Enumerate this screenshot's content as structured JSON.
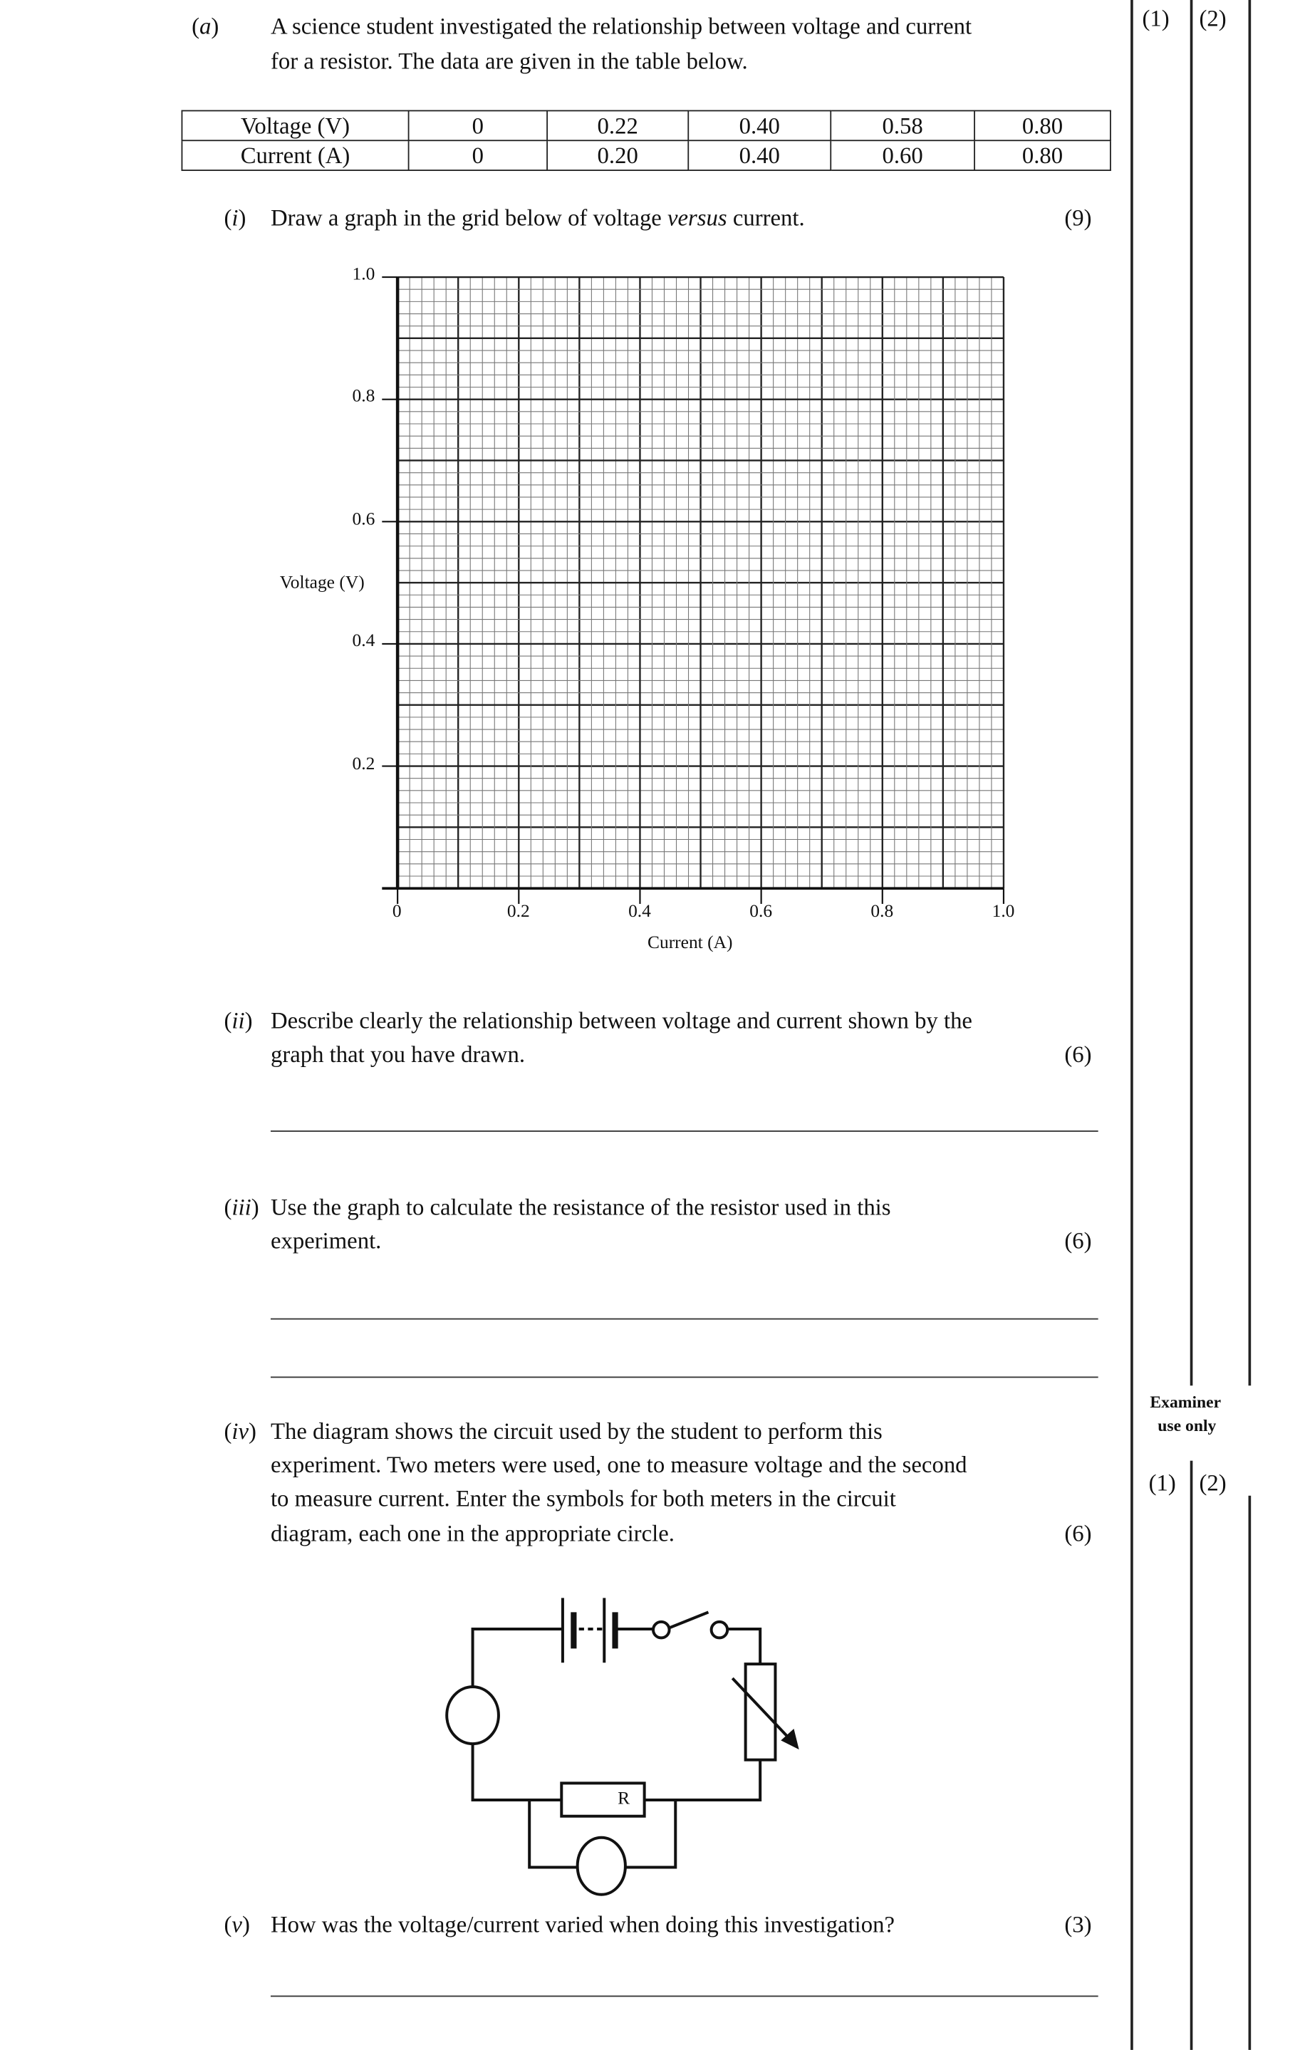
{
  "margin": {
    "top_marks": [
      "(1)",
      "(2)"
    ],
    "examiner_label": [
      "Examiner",
      "use only"
    ],
    "bottom_marks": [
      "(1)",
      "(2)"
    ]
  },
  "part_a": {
    "label": "a",
    "text": [
      "A science student investigated the relationship between voltage and current",
      "for a resistor. The data are given in the table below."
    ]
  },
  "table": {
    "rows": [
      {
        "header": "Voltage (V)",
        "values": [
          "0",
          "0.22",
          "0.40",
          "0.58",
          "0.80"
        ]
      },
      {
        "header": "Current (A)",
        "values": [
          "0",
          "0.20",
          "0.40",
          "0.60",
          "0.80"
        ]
      }
    ]
  },
  "q_i": {
    "num": "i",
    "pre": "Draw a graph in the grid below of voltage ",
    "em": "versus",
    "post": " current.",
    "marks": "(9)"
  },
  "chart_data": {
    "type": "scatter",
    "title": "",
    "xlabel": "Current (A)",
    "ylabel": "Voltage (V)",
    "xlim": [
      0,
      1.0
    ],
    "ylim": [
      0,
      1.0
    ],
    "x_ticks": [
      "0",
      "0.2",
      "0.4",
      "0.6",
      "0.8",
      "1.0"
    ],
    "y_ticks": [
      "0.2",
      "0.4",
      "0.6",
      "0.8",
      "1.0"
    ],
    "grid": true,
    "grid_major": 0.1,
    "grid_minor": 0.02,
    "points": []
  },
  "q_ii": {
    "num": "ii",
    "text": [
      "Describe clearly the relationship between voltage and current shown by the",
      "graph that you have drawn."
    ],
    "marks": "(6)"
  },
  "q_iii": {
    "num": "iii",
    "text": [
      "Use the graph to calculate the resistance of the resistor used in this",
      "experiment."
    ],
    "marks": "(6)"
  },
  "q_iv": {
    "num": "iv",
    "text": [
      "The diagram shows the circuit used by the student to perform this",
      "experiment. Two meters were used, one to measure voltage and the second",
      "to measure current. Enter the symbols for both meters in the circuit",
      "diagram, each one in the appropriate circle."
    ],
    "marks": "(6)"
  },
  "circuit": {
    "resistor_label": "R"
  },
  "q_v": {
    "num": "v",
    "text": "How was the voltage/current varied when doing this investigation?",
    "marks": "(3)"
  }
}
